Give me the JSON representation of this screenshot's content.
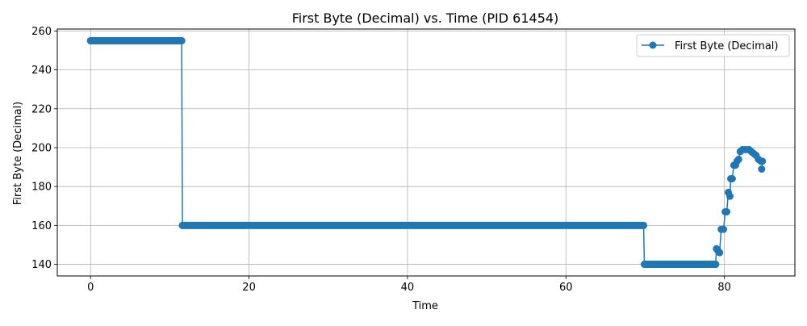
{
  "chart_data": {
    "type": "line",
    "title": "First Byte (Decimal) vs. Time (PID 61454)",
    "xlabel": "Time",
    "ylabel": "First Byte (Decimal)",
    "xlim": [
      -4.2,
      88.9
    ],
    "ylim": [
      134.0,
      261.0
    ],
    "xticks": [
      0,
      20,
      40,
      60,
      80
    ],
    "yticks": [
      140,
      160,
      180,
      200,
      220,
      240,
      260
    ],
    "grid": true,
    "legend_position": "top-right",
    "marker": "circle",
    "series": [
      {
        "name": "First Byte (Decimal)",
        "color": "#1f77b4",
        "points": [
          [
            0.0,
            255
          ],
          [
            11.5,
            255
          ],
          [
            11.6,
            160
          ],
          [
            69.8,
            160
          ],
          [
            69.9,
            140
          ],
          [
            78.9,
            140
          ],
          [
            79.0,
            148
          ],
          [
            79.2,
            147
          ],
          [
            79.4,
            146
          ],
          [
            79.6,
            158
          ],
          [
            79.9,
            158
          ],
          [
            80.1,
            167
          ],
          [
            80.3,
            167
          ],
          [
            80.5,
            177
          ],
          [
            80.7,
            175
          ],
          [
            80.8,
            184
          ],
          [
            81.0,
            184
          ],
          [
            81.2,
            191
          ],
          [
            81.4,
            191
          ],
          [
            81.6,
            193
          ],
          [
            81.8,
            194
          ],
          [
            82.0,
            198
          ],
          [
            82.3,
            199
          ],
          [
            82.7,
            199
          ],
          [
            83.1,
            199
          ],
          [
            83.4,
            198
          ],
          [
            83.7,
            197
          ],
          [
            84.0,
            196
          ],
          [
            84.3,
            194
          ],
          [
            84.6,
            193
          ],
          [
            84.8,
            193
          ],
          [
            84.7,
            189
          ]
        ]
      }
    ]
  }
}
